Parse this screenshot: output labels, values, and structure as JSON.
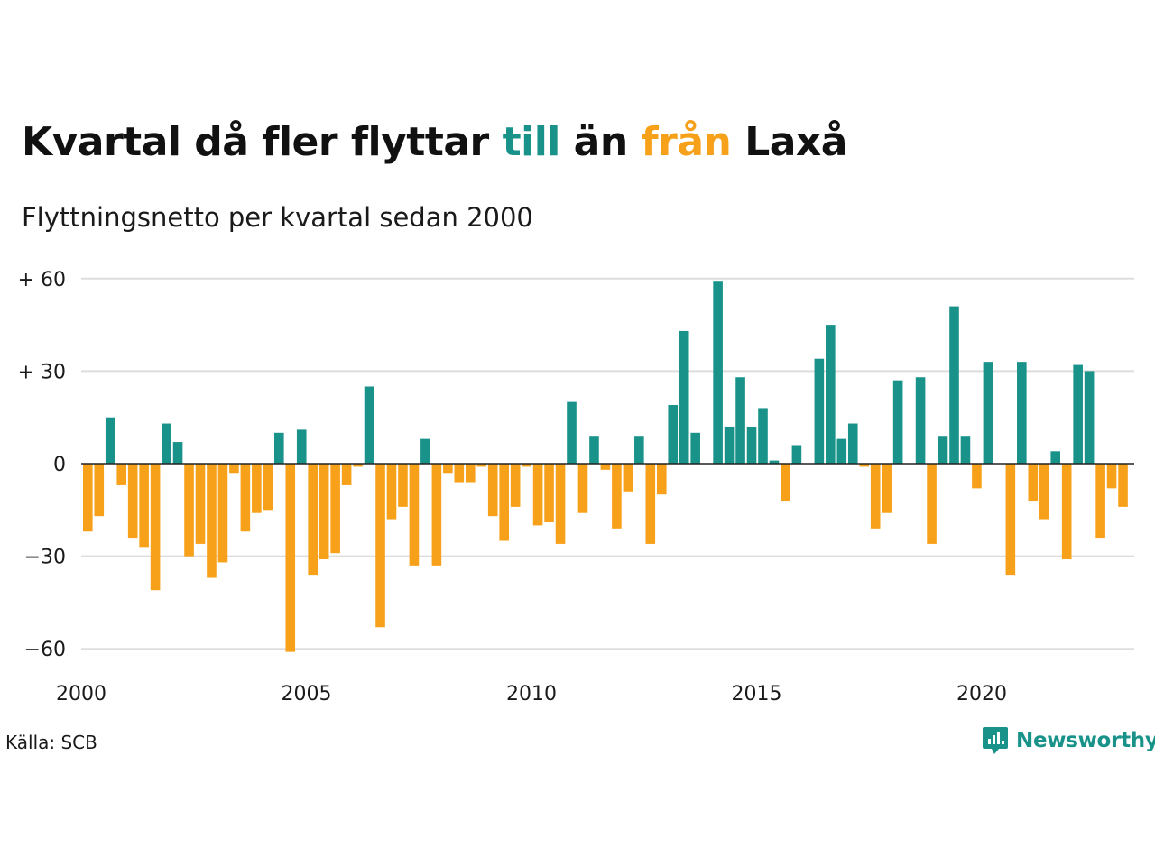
{
  "title": {
    "part1": "Kvartal då fler flyttar ",
    "till": "till",
    "part2": " än ",
    "fran": "från",
    "part3": " Laxå"
  },
  "subtitle": "Flyttningsnetto per kvartal sedan 2000",
  "source": "Källa: SCB",
  "brand": {
    "name": "Newsworthy",
    "logo_icon": "bar-chart-speech-bubble-icon"
  },
  "colors": {
    "positive": "#19928a",
    "negative": "#f7a11a",
    "grid": "#dddddd",
    "zero": "#222222"
  },
  "chart_data": {
    "type": "bar",
    "y_ticks": [
      {
        "value": 60,
        "label": "+ 60"
      },
      {
        "value": 30,
        "label": "+ 30"
      },
      {
        "value": 0,
        "label": "0"
      },
      {
        "value": -30,
        "label": "−30"
      },
      {
        "value": -60,
        "label": "−60"
      }
    ],
    "x_ticks": [
      {
        "value": 2000,
        "label": "2000"
      },
      {
        "value": 2005,
        "label": "2005"
      },
      {
        "value": 2010,
        "label": "2010"
      },
      {
        "value": 2015,
        "label": "2015"
      },
      {
        "value": 2020,
        "label": "2020"
      }
    ],
    "ylim": [
      -62,
      60
    ],
    "first_quarter": "2000 Q1",
    "values": [
      -22,
      -17,
      15,
      -7,
      -24,
      -27,
      -41,
      13,
      7,
      -30,
      -26,
      -37,
      -32,
      -3,
      -22,
      -16,
      -15,
      10,
      -61,
      11,
      -36,
      -31,
      -29,
      -7,
      -1,
      25,
      -53,
      -18,
      -14,
      -33,
      8,
      -33,
      -3,
      -6,
      -6,
      -1,
      -17,
      -25,
      -14,
      -1,
      -20,
      -19,
      -26,
      20,
      -16,
      9,
      -2,
      -21,
      -9,
      9,
      -26,
      -10,
      19,
      43,
      10,
      0,
      59,
      12,
      28,
      12,
      18,
      1,
      -12,
      6,
      0,
      34,
      45,
      8,
      13,
      -1,
      -21,
      -16,
      27,
      0,
      28,
      -26,
      9,
      51,
      9,
      -8,
      33,
      0,
      -36,
      33,
      -12,
      -18,
      4,
      -31,
      32,
      30,
      -24,
      -8,
      -14
    ]
  }
}
